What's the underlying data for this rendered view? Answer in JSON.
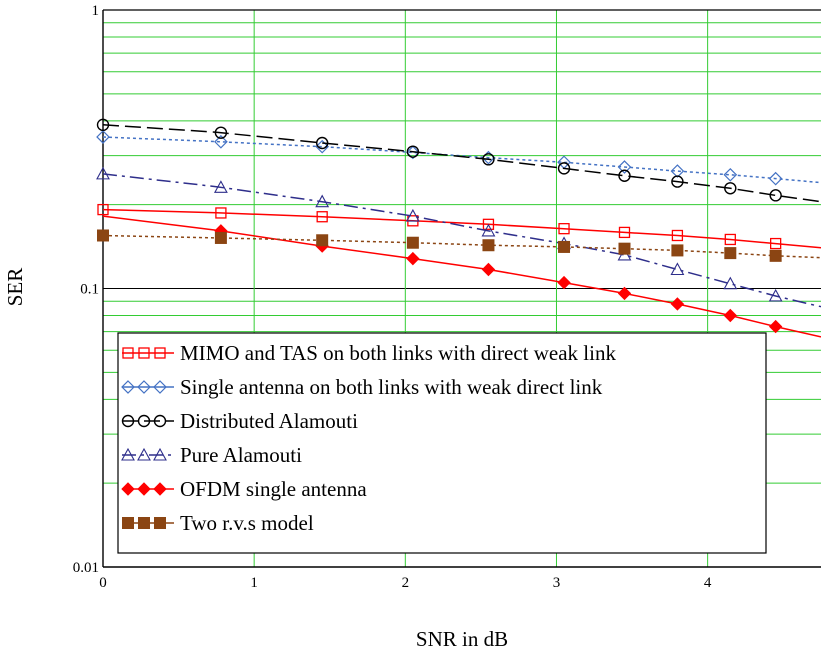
{
  "chart_data": {
    "type": "line",
    "title": "",
    "xlabel": "SNR in dB",
    "ylabel": "SER",
    "xlim": [
      0,
      4.75
    ],
    "ylim": [
      0.01,
      1
    ],
    "yscale": "log",
    "grid": true,
    "x_ticks": [
      0,
      1,
      2,
      3,
      4
    ],
    "x_tick_labels": [
      "0",
      "1",
      "2",
      "3",
      "4"
    ],
    "y_ticks": [
      0.01,
      0.1,
      1
    ],
    "y_tick_labels": [
      "0.01",
      "0.1",
      "1"
    ],
    "legend_position": "lower-left",
    "series": [
      {
        "name": "MIMO and TAS on both links with direct weak link",
        "color": "#ff0000",
        "marker": "square-open",
        "line": "solid",
        "x": [
          0,
          0.75,
          1.45,
          2.05,
          2.55,
          3.05,
          3.45,
          3.8,
          4.15,
          4.45,
          4.75
        ],
        "y": [
          0.192,
          0.187,
          0.181,
          0.175,
          0.17,
          0.164,
          0.159,
          0.155,
          0.15,
          0.145,
          0.14
        ],
        "markers_x": [
          0,
          0.78,
          1.45,
          2.05,
          2.55,
          3.05,
          3.45,
          3.8,
          4.15,
          4.45
        ]
      },
      {
        "name": "Single antenna on both links with weak direct link",
        "color": "#4472c4",
        "marker": "diamond-open",
        "line": "dotted",
        "x": [
          0,
          0.75,
          1.45,
          2.05,
          2.55,
          3.05,
          3.45,
          3.8,
          4.15,
          4.45,
          4.75
        ],
        "y": [
          0.35,
          0.337,
          0.323,
          0.308,
          0.295,
          0.284,
          0.273,
          0.264,
          0.256,
          0.248,
          0.24
        ],
        "markers_x": [
          0,
          0.78,
          1.45,
          2.05,
          2.55,
          3.05,
          3.45,
          3.8,
          4.15,
          4.45
        ]
      },
      {
        "name": "Distributed Alamouti",
        "color": "#000000",
        "marker": "circle-open",
        "line": "dashed",
        "x": [
          0,
          0.75,
          1.45,
          2.05,
          2.55,
          3.05,
          3.45,
          3.8,
          4.15,
          4.45,
          4.75
        ],
        "y": [
          0.387,
          0.364,
          0.333,
          0.31,
          0.291,
          0.27,
          0.254,
          0.242,
          0.229,
          0.216,
          0.205
        ],
        "markers_x": [
          0,
          0.78,
          1.45,
          2.05,
          2.55,
          3.05,
          3.45,
          3.8,
          4.15,
          4.45
        ]
      },
      {
        "name": "Pure Alamouti",
        "color": "#2e2e8b",
        "marker": "triangle-open",
        "line": "dashdot",
        "x": [
          0,
          0.75,
          1.45,
          2.05,
          2.55,
          3.05,
          3.45,
          3.8,
          4.15,
          4.45,
          4.75
        ],
        "y": [
          0.258,
          0.232,
          0.205,
          0.182,
          0.161,
          0.145,
          0.132,
          0.117,
          0.104,
          0.094,
          0.086
        ],
        "markers_x": [
          0,
          0.78,
          1.45,
          2.05,
          2.55,
          3.05,
          3.45,
          3.8,
          4.15,
          4.45
        ]
      },
      {
        "name": "OFDM single antenna",
        "color": "#ff0000",
        "marker": "diamond-filled",
        "line": "solid",
        "x": [
          0,
          0.75,
          1.45,
          2.05,
          2.55,
          3.05,
          3.45,
          3.8,
          4.15,
          4.45,
          4.75
        ],
        "y": [
          0.182,
          0.162,
          0.142,
          0.128,
          0.117,
          0.105,
          0.096,
          0.088,
          0.08,
          0.073,
          0.067
        ],
        "markers_x": [
          0.78,
          1.45,
          2.05,
          2.55,
          3.05,
          3.45,
          3.8,
          4.15,
          4.45
        ]
      },
      {
        "name": "Two r.v.s model",
        "color": "#8b4513",
        "marker": "square-filled",
        "line": "dotted",
        "x": [
          0,
          0.75,
          1.45,
          2.05,
          2.55,
          3.05,
          3.45,
          3.8,
          4.15,
          4.45,
          4.75
        ],
        "y": [
          0.155,
          0.152,
          0.149,
          0.146,
          0.143,
          0.141,
          0.139,
          0.137,
          0.134,
          0.131,
          0.129
        ],
        "markers_x": [
          0,
          0.78,
          1.45,
          2.05,
          2.55,
          3.05,
          3.45,
          3.8,
          4.15,
          4.45
        ]
      }
    ]
  }
}
